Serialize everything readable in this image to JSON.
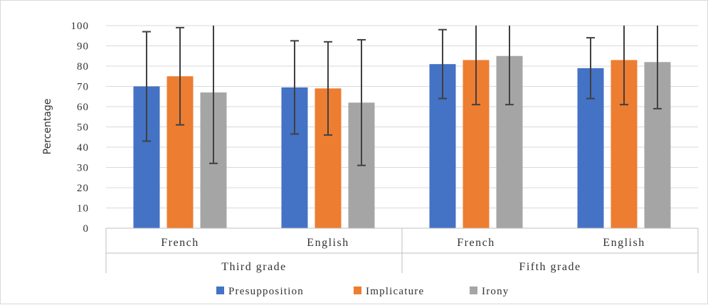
{
  "chart_data": {
    "type": "bar",
    "title": "",
    "ylabel": "Percentage",
    "xlabel": "",
    "ylim": [
      0,
      100
    ],
    "ytick_step": 10,
    "grid": true,
    "legend_position": "bottom",
    "groups": [
      {
        "label": "Third grade",
        "categories": [
          "French",
          "English"
        ]
      },
      {
        "label": "Fifth grade",
        "categories": [
          "French",
          "English"
        ]
      }
    ],
    "categories": [
      "French",
      "English",
      "French",
      "English"
    ],
    "series": [
      {
        "name": "Presupposition",
        "color": "#4472C4",
        "values": [
          70,
          69.5,
          81,
          79
        ],
        "error_low": [
          43,
          46.5,
          64,
          64
        ],
        "error_high": [
          97,
          92.5,
          98,
          94
        ]
      },
      {
        "name": "Implicature",
        "color": "#ED7D31",
        "values": [
          75,
          69,
          83,
          83
        ],
        "error_low": [
          51,
          46,
          61,
          61
        ],
        "error_high": [
          99,
          92,
          100,
          100
        ]
      },
      {
        "name": "Irony",
        "color": "#A5A5A5",
        "values": [
          67,
          62,
          85,
          82
        ],
        "error_low": [
          32,
          31,
          61,
          59
        ],
        "error_high": [
          100,
          93,
          100,
          100
        ]
      }
    ]
  }
}
